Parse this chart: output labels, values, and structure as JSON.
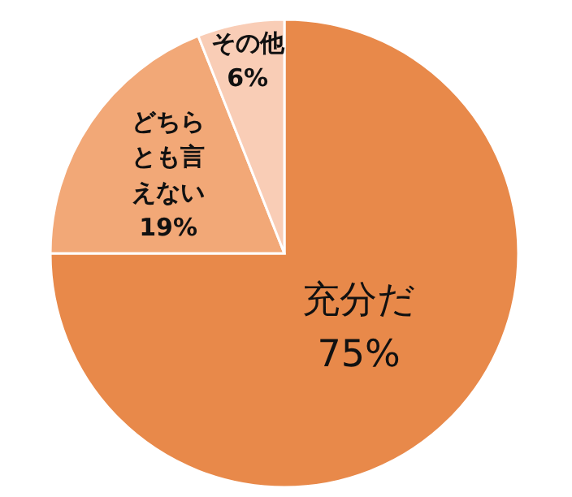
{
  "chart_data": {
    "type": "pie",
    "categories": [
      "充分だ",
      "どちらとも言えない",
      "その他"
    ],
    "values": [
      75,
      19,
      6
    ],
    "colors": [
      "#e8894a",
      "#f2a877",
      "#f9cdb6"
    ],
    "value_labels": [
      "75%",
      "19%",
      "6%"
    ]
  }
}
